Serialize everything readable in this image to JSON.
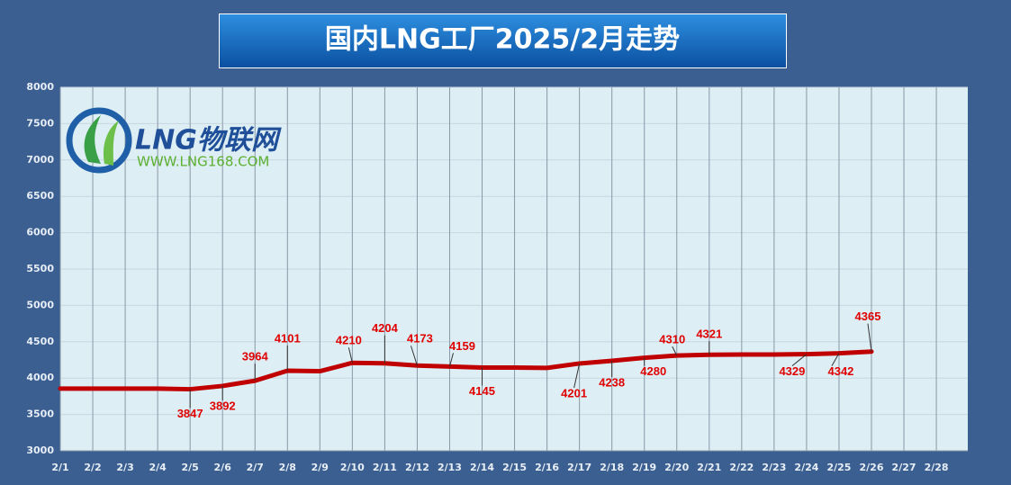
{
  "chart_data": {
    "type": "line",
    "title": "国内LNG工厂2025/2月走势",
    "logo_text": "LNG物联网",
    "logo_url": "WWW.LNG168.COM",
    "categories": [
      "2/1",
      "2/2",
      "2/3",
      "2/4",
      "2/5",
      "2/6",
      "2/7",
      "2/8",
      "2/9",
      "2/10",
      "2/11",
      "2/12",
      "2/13",
      "2/14",
      "2/15",
      "2/16",
      "2/17",
      "2/18",
      "2/19",
      "2/20",
      "2/21",
      "2/22",
      "2/23",
      "2/24",
      "2/25",
      "2/26",
      "2/27",
      "2/28"
    ],
    "series": [
      {
        "name": "LNG工厂",
        "color": "#c00000",
        "values": [
          3855,
          3855,
          3855,
          3855,
          3847,
          3892,
          3964,
          4101,
          4095,
          4210,
          4204,
          4173,
          4159,
          4145,
          4145,
          4140,
          4201,
          4238,
          4280,
          4310,
          4321,
          4325,
          4325,
          4329,
          4342,
          4365,
          null,
          null
        ],
        "value_labels": [
          null,
          null,
          null,
          null,
          "3847",
          "3892",
          "3964",
          "4101",
          null,
          "4210",
          "4204",
          "4173",
          "4159",
          "4145",
          null,
          null,
          "4201",
          "4238",
          "4280",
          "4310",
          "4321",
          null,
          null,
          "4329",
          "4342",
          "4365",
          null,
          null
        ]
      }
    ],
    "ylim": [
      3000,
      8000
    ],
    "yticks": [
      3000,
      3500,
      4000,
      4500,
      5000,
      5500,
      6000,
      6500,
      7000,
      7500,
      8000
    ],
    "grid": true
  }
}
